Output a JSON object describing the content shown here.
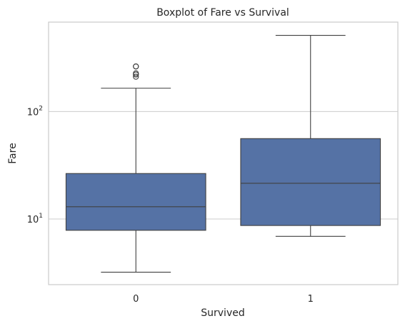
{
  "chart_data": {
    "type": "box",
    "title": "Boxplot of Fare vs Survival",
    "xlabel": "Survived",
    "ylabel": "Fare",
    "yscale": "log",
    "ylim": [
      2.45,
      680
    ],
    "y_ticks": [
      {
        "value": 10,
        "base": "10",
        "exp": "1"
      },
      {
        "value": 100,
        "base": "10",
        "exp": "2"
      }
    ],
    "grid": "horizontal",
    "categories": [
      "0",
      "1"
    ],
    "boxes": [
      {
        "category": "0",
        "whisker_low": 3.2,
        "q1": 7.85,
        "median": 13.0,
        "q3": 26.5,
        "whisker_high": 165,
        "outliers": [
          211,
          221,
          227,
          263,
          263
        ]
      },
      {
        "category": "1",
        "whisker_low": 6.9,
        "q1": 8.7,
        "median": 21.5,
        "q3": 56.0,
        "whisker_high": 512,
        "outliers": []
      }
    ],
    "colors": {
      "box_fill": "#5572a5",
      "line": "#404040",
      "grid": "#cccccc",
      "frame": "#cccccc",
      "background": "#ffffff"
    }
  }
}
